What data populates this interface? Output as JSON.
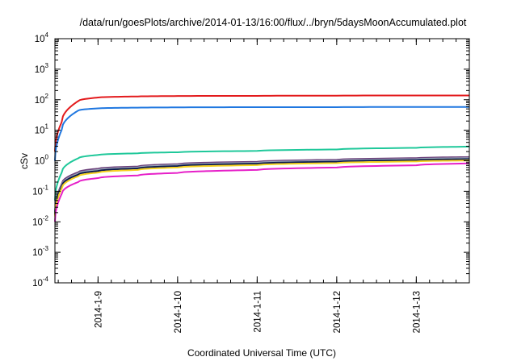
{
  "chart_data": {
    "type": "line",
    "title": "/data/run/goesPlots/archive/2014-01-13/16:00/flux/../bryn/5daysMoonAccumulated.plot",
    "xlabel": "Coordinated Universal Time (UTC)",
    "ylabel": "cSv",
    "yscale": "log",
    "ylim": [
      0.0001,
      10000
    ],
    "yticks": [
      {
        "base": "10",
        "exp": "-4",
        "value": 0.0001
      },
      {
        "base": "10",
        "exp": "-3",
        "value": 0.001
      },
      {
        "base": "10",
        "exp": "-2",
        "value": 0.01
      },
      {
        "base": "10",
        "exp": "-1",
        "value": 0.1
      },
      {
        "base": "10",
        "exp": "0",
        "value": 1
      },
      {
        "base": "10",
        "exp": "1",
        "value": 10
      },
      {
        "base": "10",
        "exp": "2",
        "value": 100
      },
      {
        "base": "10",
        "exp": "3",
        "value": 1000
      },
      {
        "base": "10",
        "exp": "4",
        "value": 10000
      }
    ],
    "xlim": [
      "2014-01-08 11:00",
      "2014-01-13 16:00"
    ],
    "xticks": [
      "2014-1-9",
      "2014-1-10",
      "2014-1-11",
      "2014-1-12",
      "2014-1-13"
    ],
    "grid": false,
    "legend": "none",
    "series": [
      {
        "color": "#e31a1c",
        "x": [
          "2014-01-08 11:00",
          "2014-01-08 13:00",
          "2014-01-08 18:00",
          "2014-01-09 00:00",
          "2014-01-09 12:00",
          "2014-01-10 00:00",
          "2014-01-11 00:00",
          "2014-01-12 00:00",
          "2014-01-13 00:00",
          "2014-01-13 16:00"
        ],
        "y": [
          2,
          18,
          90,
          118,
          128,
          132,
          134,
          136,
          138,
          138
        ]
      },
      {
        "color": "#1f77e0",
        "x": [
          "2014-01-08 11:00",
          "2014-01-08 13:00",
          "2014-01-08 18:00",
          "2014-01-09 00:00",
          "2014-01-09 12:00",
          "2014-01-10 00:00",
          "2014-01-11 00:00",
          "2014-01-12 00:00",
          "2014-01-13 00:00",
          "2014-01-13 16:00"
        ],
        "y": [
          1,
          10,
          44,
          52,
          55,
          56,
          57,
          57,
          58,
          58
        ]
      },
      {
        "color": "#1fc89a",
        "x": [
          "2014-01-08 11:00",
          "2014-01-08 13:00",
          "2014-01-08 18:00",
          "2014-01-09 00:00",
          "2014-01-09 12:00",
          "2014-01-10 00:00",
          "2014-01-11 00:00",
          "2014-01-12 00:00",
          "2014-01-13 00:00",
          "2014-01-13 16:00"
        ],
        "y": [
          0.05,
          0.4,
          1.2,
          1.55,
          1.75,
          1.9,
          2.1,
          2.35,
          2.65,
          2.9
        ]
      },
      {
        "color": "#6b3f7a",
        "x": [
          "2014-01-08 11:00",
          "2014-01-08 13:00",
          "2014-01-08 18:00",
          "2014-01-09 00:00",
          "2014-01-09 12:00",
          "2014-01-10 00:00",
          "2014-01-11 00:00",
          "2014-01-12 00:00",
          "2014-01-13 00:00",
          "2014-01-13 16:00"
        ],
        "y": [
          0.02,
          0.17,
          0.42,
          0.55,
          0.65,
          0.78,
          0.93,
          1.08,
          1.22,
          1.32
        ]
      },
      {
        "color": "#9aa6b8",
        "x": [
          "2014-01-08 11:00",
          "2014-01-08 13:00",
          "2014-01-08 18:00",
          "2014-01-09 00:00",
          "2014-01-09 12:00",
          "2014-01-10 00:00",
          "2014-01-11 00:00",
          "2014-01-12 00:00",
          "2014-01-13 00:00",
          "2014-01-13 16:00"
        ],
        "y": [
          0.018,
          0.15,
          0.38,
          0.5,
          0.6,
          0.72,
          0.86,
          1.0,
          1.13,
          1.22
        ]
      },
      {
        "color": "#0a1a4f",
        "x": [
          "2014-01-08 11:00",
          "2014-01-08 13:00",
          "2014-01-08 18:00",
          "2014-01-09 00:00",
          "2014-01-09 12:00",
          "2014-01-10 00:00",
          "2014-01-11 00:00",
          "2014-01-12 00:00",
          "2014-01-13 00:00",
          "2014-01-13 16:00"
        ],
        "y": [
          0.017,
          0.14,
          0.35,
          0.46,
          0.56,
          0.67,
          0.8,
          0.93,
          1.05,
          1.13
        ]
      },
      {
        "color": "#f5d020",
        "x": [
          "2014-01-08 11:00",
          "2014-01-08 13:00",
          "2014-01-08 18:00",
          "2014-01-09 00:00",
          "2014-01-09 12:00",
          "2014-01-10 00:00",
          "2014-01-11 00:00",
          "2014-01-12 00:00",
          "2014-01-13 00:00",
          "2014-01-13 16:00"
        ],
        "y": [
          0.015,
          0.12,
          0.31,
          0.41,
          0.5,
          0.6,
          0.72,
          0.84,
          0.95,
          1.02
        ]
      },
      {
        "color": "#e61fc8",
        "x": [
          "2014-01-08 11:00",
          "2014-01-08 13:00",
          "2014-01-08 18:00",
          "2014-01-09 00:00",
          "2014-01-09 12:00",
          "2014-01-10 00:00",
          "2014-01-11 00:00",
          "2014-01-12 00:00",
          "2014-01-13 00:00",
          "2014-01-13 16:00"
        ],
        "y": [
          0.01,
          0.08,
          0.2,
          0.27,
          0.33,
          0.4,
          0.5,
          0.6,
          0.71,
          0.82
        ]
      }
    ]
  }
}
